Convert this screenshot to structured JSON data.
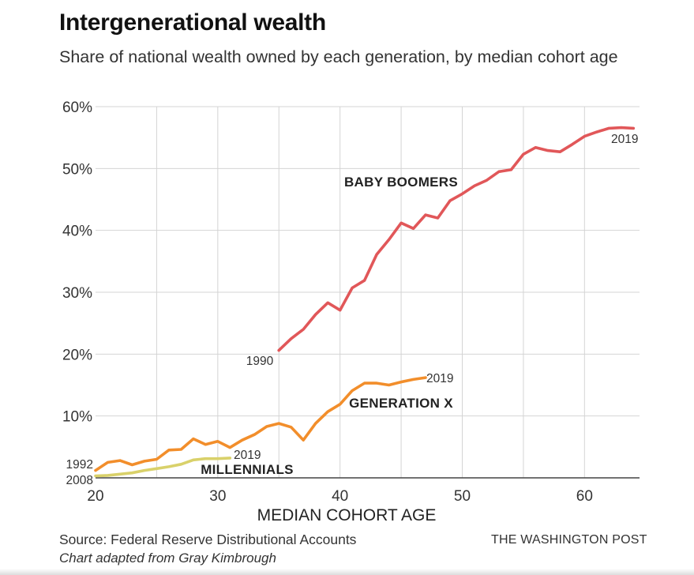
{
  "header": {
    "title": "Intergenerational wealth",
    "subtitle": "Share of national wealth owned by each generation, by median cohort age"
  },
  "footer": {
    "source": "Source: Federal Reserve Distributional Accounts",
    "credit": "Chart adapted from Gray Kimbrough",
    "brand": "THE WASHINGTON POST"
  },
  "chart_data": {
    "type": "line",
    "title": "Intergenerational wealth",
    "subtitle": "Share of national wealth owned by each generation, by median cohort age",
    "xlabel": "MEDIAN COHORT AGE",
    "ylabel": "",
    "xlim": [
      20,
      64.5
    ],
    "ylim": [
      0,
      60
    ],
    "x_ticks": [
      "20",
      "30",
      "40",
      "50",
      "60"
    ],
    "x_tick_values": [
      20,
      30,
      40,
      50,
      60
    ],
    "y_ticks": [
      "10%",
      "20%",
      "30%",
      "40%",
      "50%",
      "60%"
    ],
    "y_tick_values": [
      10,
      20,
      30,
      40,
      50,
      60
    ],
    "grid": true,
    "series": [
      {
        "name": "BABY BOOMERS",
        "color": "#e15759",
        "start_label": "1990",
        "end_label": "2019",
        "x": [
          35,
          36,
          37,
          38,
          39,
          40,
          41,
          42,
          43,
          44,
          45,
          46,
          47,
          48,
          49,
          50,
          51,
          52,
          53,
          54,
          55,
          56,
          57,
          58,
          59,
          60,
          61,
          62,
          63,
          64
        ],
        "y": [
          20.6,
          22.5,
          24.0,
          26.4,
          28.3,
          27.1,
          30.7,
          31.9,
          36.1,
          38.5,
          41.2,
          40.3,
          42.5,
          42.0,
          44.8,
          45.9,
          47.2,
          48.1,
          49.5,
          49.8,
          52.3,
          53.4,
          52.9,
          52.7,
          53.9,
          55.2,
          55.9,
          56.5,
          56.6,
          56.5
        ]
      },
      {
        "name": "GENERATION X",
        "color": "#f28e2b",
        "start_label": "1992",
        "end_label": "2019",
        "x": [
          20,
          21,
          22,
          23,
          24,
          25,
          26,
          27,
          28,
          29,
          30,
          31,
          32,
          33,
          34,
          35,
          36,
          37,
          38,
          39,
          40,
          41,
          42,
          43,
          44,
          45,
          46,
          47
        ],
        "y": [
          1.2,
          2.5,
          2.8,
          2.1,
          2.7,
          3.0,
          4.5,
          4.6,
          6.3,
          5.4,
          5.9,
          4.9,
          6.1,
          7.0,
          8.3,
          8.8,
          8.2,
          6.1,
          8.8,
          10.7,
          11.9,
          14.1,
          15.3,
          15.3,
          15.0,
          15.5,
          15.9,
          16.2
        ]
      },
      {
        "name": "MILLENNIALS",
        "color": "#d9d16a",
        "start_label": "2008",
        "end_label": "2019",
        "x": [
          20,
          21,
          22,
          23,
          24,
          25,
          26,
          27,
          28,
          29,
          30,
          31
        ],
        "y": [
          0.3,
          0.4,
          0.6,
          0.8,
          1.2,
          1.5,
          1.8,
          2.2,
          2.9,
          3.1,
          3.1,
          3.2
        ]
      }
    ]
  }
}
